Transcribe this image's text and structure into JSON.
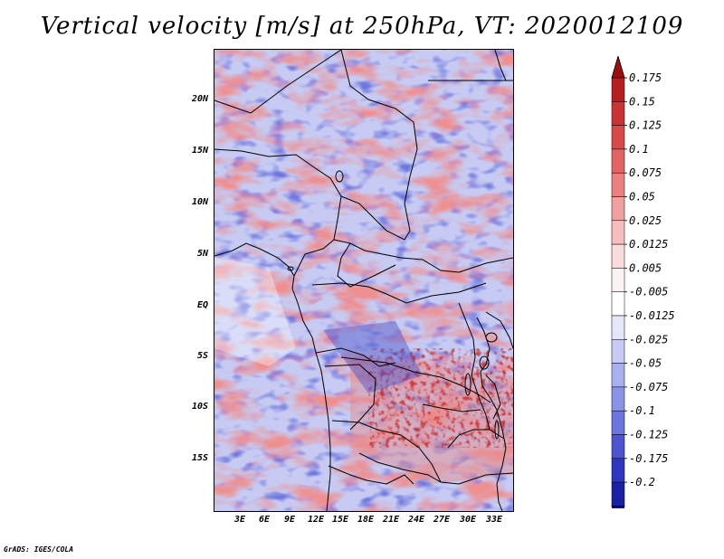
{
  "title": "Vertical velocity [m/s] at 250hPa, VT: 2020012109",
  "credit": "GrADS: IGES/COLA",
  "lat_labels": [
    "20N",
    "15N",
    "10N",
    "5N",
    "EQ",
    "5S",
    "10S",
    "15S"
  ],
  "lon_labels": [
    "3E",
    "6E",
    "9E",
    "12E",
    "15E",
    "18E",
    "21E",
    "24E",
    "27E",
    "30E",
    "33E"
  ],
  "colorbar": {
    "labels": [
      "0.175",
      "0.15",
      "0.125",
      "0.1",
      "0.075",
      "0.05",
      "0.025",
      "0.0125",
      "0.005",
      "-0.005",
      "-0.0125",
      "-0.025",
      "-0.05",
      "-0.075",
      "-0.1",
      "-0.125",
      "-0.175",
      "-0.2"
    ],
    "colors": [
      "#9c0f0f",
      "#b51f1f",
      "#c93434",
      "#d84a4a",
      "#e26464",
      "#ea8080",
      "#f1a0a0",
      "#f6bebe",
      "#fadcdc",
      "#fdf2f2",
      "#ffffff",
      "#e4e6fa",
      "#c8cbf4",
      "#aab0ee",
      "#8b93e6",
      "#6c75dc",
      "#4c55cf",
      "#2e36bd",
      "#1a209f",
      "#0c0f80"
    ]
  },
  "map": {
    "region": "Central Africa",
    "field": "vertical velocity, 250 hPa",
    "shading": "blue = negative, red = positive"
  }
}
